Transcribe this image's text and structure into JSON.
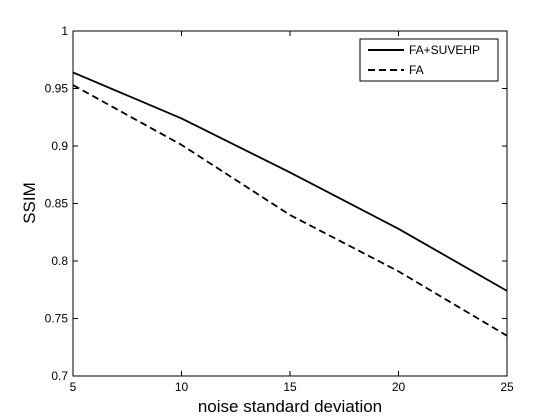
{
  "chart_data": {
    "type": "line",
    "title": "",
    "xlabel": "noise standard deviation",
    "ylabel": "SSIM",
    "xlim": [
      5,
      25
    ],
    "ylim": [
      0.7,
      1
    ],
    "xticks": [
      5,
      10,
      15,
      20,
      25
    ],
    "yticks": [
      0.7,
      0.75,
      0.8,
      0.85,
      0.9,
      0.95,
      1
    ],
    "xtick_labels": [
      "5",
      "10",
      "15",
      "20",
      "25"
    ],
    "ytick_labels": [
      "0.7",
      "0.75",
      "0.8",
      "0.85",
      "0.9",
      "0.95",
      "1"
    ],
    "grid": false,
    "legend_position": "top-right",
    "x": [
      5,
      10,
      15,
      20,
      25
    ],
    "series": [
      {
        "name": "FA+SUVEHP",
        "style": "solid",
        "color": "#000000",
        "values": [
          0.964,
          0.924,
          0.877,
          0.828,
          0.774
        ]
      },
      {
        "name": "FA",
        "style": "dashed",
        "color": "#000000",
        "values": [
          0.953,
          0.901,
          0.84,
          0.791,
          0.735
        ]
      }
    ]
  }
}
